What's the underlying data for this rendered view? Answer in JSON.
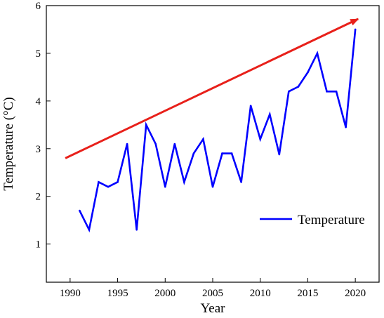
{
  "chart_data": {
    "type": "line",
    "xlabel": "Year",
    "ylabel": "Temperature (°C)",
    "xlim": [
      1987.5,
      2022.5
    ],
    "ylim": [
      0.2,
      6.0
    ],
    "x_ticks": [
      1990,
      1995,
      2000,
      2005,
      2010,
      2015,
      2020
    ],
    "y_ticks": [
      1,
      2,
      3,
      4,
      5,
      6
    ],
    "series": [
      {
        "name": "Temperature",
        "color": "#0000ff",
        "x": [
          1991,
          1992,
          1993,
          1994,
          1995,
          1996,
          1997,
          1998,
          1999,
          2000,
          2001,
          2002,
          2003,
          2004,
          2005,
          2006,
          2007,
          2008,
          2009,
          2010,
          2011,
          2012,
          2013,
          2014,
          2015,
          2016,
          2017,
          2018,
          2019,
          2020
        ],
        "values": [
          1.7,
          1.3,
          2.3,
          2.2,
          2.3,
          3.1,
          1.3,
          3.5,
          3.1,
          2.2,
          3.1,
          2.3,
          2.9,
          3.2,
          2.2,
          2.9,
          2.9,
          2.3,
          3.9,
          3.2,
          3.72,
          2.88,
          4.2,
          4.3,
          4.6,
          5.0,
          4.2,
          4.2,
          3.45,
          5.5
        ]
      }
    ],
    "trend_arrow": {
      "color": "#e8201a",
      "from": [
        1989.5,
        2.8
      ],
      "to": [
        2020.3,
        5.72
      ]
    },
    "legend": {
      "position": "lower-right",
      "entries": [
        "Temperature"
      ]
    },
    "grid": false
  }
}
